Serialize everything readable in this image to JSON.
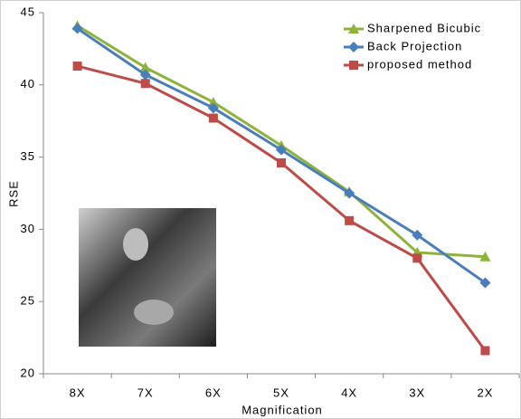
{
  "chart_data": {
    "type": "line",
    "x_label": "Magnification",
    "y_label": "RSE",
    "categories": [
      "8X",
      "7X",
      "6X",
      "5X",
      "4X",
      "3X",
      "2X"
    ],
    "series": [
      {
        "name": "Sharpened Bicubic",
        "color": "#8db33a",
        "marker": "triangle",
        "values": [
          44.1,
          41.2,
          38.8,
          35.8,
          32.6,
          28.4,
          28.1
        ]
      },
      {
        "name": "Back Projection",
        "color": "#4a7ebb",
        "marker": "diamond",
        "values": [
          43.9,
          40.7,
          38.4,
          35.5,
          32.5,
          29.6,
          26.3
        ]
      },
      {
        "name": "proposed method",
        "color": "#be4b48",
        "marker": "square",
        "values": [
          41.3,
          40.1,
          37.7,
          34.6,
          30.6,
          28.0,
          21.6
        ]
      }
    ],
    "ylim": [
      20,
      45
    ],
    "yticks": [
      20,
      25,
      30,
      35,
      40,
      45
    ],
    "legend": "upper right"
  }
}
